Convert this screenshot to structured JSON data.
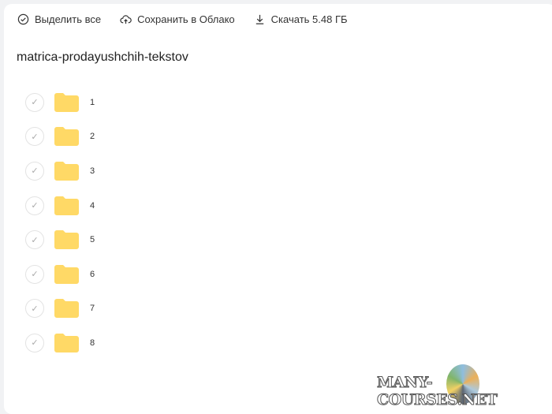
{
  "toolbar": {
    "select_all": "Выделить все",
    "save_to_cloud": "Сохранить в Облако",
    "download": "Скачать 5.48 ГБ"
  },
  "folder_title": "matrica-prodayushchih-tekstov",
  "items": [
    {
      "name": "1"
    },
    {
      "name": "2"
    },
    {
      "name": "3"
    },
    {
      "name": "4"
    },
    {
      "name": "5"
    },
    {
      "name": "6"
    },
    {
      "name": "7"
    },
    {
      "name": "8"
    }
  ],
  "colors": {
    "folder": "#ffd966",
    "background": "#f1f2f4"
  },
  "watermark": "MANY-COURSES.NET"
}
